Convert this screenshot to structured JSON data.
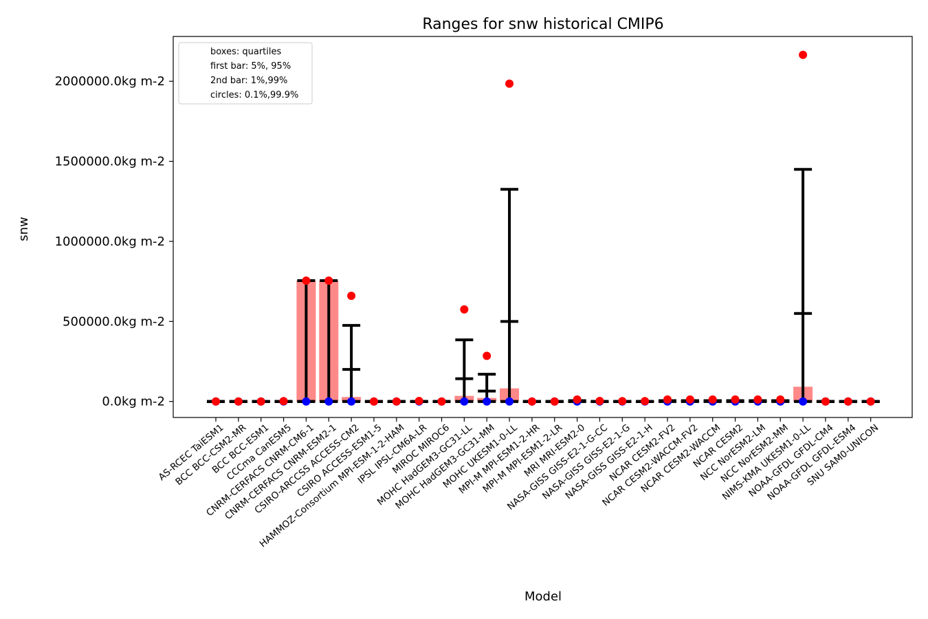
{
  "chart_data": {
    "type": "box-range",
    "title": "Ranges for snw historical CMIP6",
    "xlabel": "Model",
    "ylabel": "snw",
    "ylim": [
      -100000,
      2280000
    ],
    "yticks": [
      0,
      500000,
      1000000,
      1500000,
      2000000
    ],
    "ytick_labels": [
      "0.0kg m-2",
      "500000.0kg m-2",
      "1000000.0kg m-2",
      "1500000.0kg m-2",
      "2000000.0kg m-2"
    ],
    "legend": {
      "placement": "top-left",
      "entries": [
        "boxes: quartiles",
        "first bar: 5%, 95%",
        "2nd bar: 1%,99%",
        "circles: 0.1%,99.9%"
      ]
    },
    "colors": {
      "box": "#ff8888",
      "bar": "#000000",
      "circle_high": "#ff0000",
      "circle_low": "#0000ff"
    },
    "categories": [
      "AS-RCEC TaiESM1",
      "BCC BCC-CSM2-MR",
      "BCC BCC-ESM1",
      "CCCma CanESM5",
      "CNRM-CERFACS CNRM-CM6-1",
      "CNRM-CERFACS CNRM-ESM2-1",
      "CSIRO-ARCCSS ACCESS-CM2",
      "CSIRO ACCESS-ESM1-5",
      "HAMMOZ-Consortium MPI-ESM-1-2-HAM",
      "IPSL IPSL-CM6A-LR",
      "MIROC MIROC6",
      "MOHC HadGEM3-GC31-LL",
      "MOHC HadGEM3-GC31-MM",
      "MOHC UKESM1-0-LL",
      "MPI-M MPI-ESM1-2-HR",
      "MPI-M MPI-ESM1-2-LR",
      "MRI MRI-ESM2-0",
      "NASA-GISS GISS-E2-1-G-CC",
      "NASA-GISS GISS-E2-1-G",
      "NASA-GISS GISS-E2-1-H",
      "NCAR CESM2-FV2",
      "NCAR CESM2-WACCM-FV2",
      "NCAR CESM2-WACCM",
      "NCAR CESM2",
      "NCC NorESM2-LM",
      "NCC NorESM2-MM",
      "NIMS-KMA UKESM1-0-LL",
      "NOAA-GFDL GFDL-CM4",
      "NOAA-GFDL GFDL-ESM4",
      "SNU SAM0-UNICON"
    ],
    "series": [
      {
        "name": "quartile_low",
        "values": [
          0,
          0,
          0,
          0,
          0,
          0,
          0,
          0,
          0,
          0,
          0,
          0,
          0,
          0,
          0,
          0,
          0,
          0,
          0,
          0,
          0,
          0,
          0,
          0,
          0,
          0,
          0,
          0,
          0,
          0
        ]
      },
      {
        "name": "quartile_high",
        "values": [
          0,
          0,
          0,
          0,
          755000,
          755000,
          28000,
          0,
          0,
          0,
          0,
          35000,
          22000,
          82000,
          0,
          0,
          0,
          0,
          0,
          0,
          0,
          0,
          0,
          0,
          0,
          0,
          92000,
          0,
          0,
          0
        ]
      },
      {
        "name": "p5",
        "values": [
          0,
          0,
          0,
          0,
          0,
          0,
          0,
          0,
          0,
          0,
          0,
          0,
          0,
          0,
          0,
          0,
          0,
          0,
          0,
          0,
          0,
          0,
          0,
          0,
          0,
          0,
          0,
          0,
          0,
          0
        ]
      },
      {
        "name": "p95",
        "values": [
          0,
          0,
          0,
          0,
          0,
          0,
          200000,
          0,
          0,
          0,
          0,
          142000,
          65000,
          500000,
          0,
          0,
          0,
          0,
          0,
          0,
          5000,
          5000,
          5000,
          5000,
          5000,
          5000,
          550000,
          0,
          0,
          0
        ]
      },
      {
        "name": "p1",
        "values": [
          0,
          0,
          0,
          0,
          0,
          0,
          0,
          0,
          0,
          0,
          0,
          0,
          0,
          0,
          0,
          0,
          0,
          0,
          0,
          0,
          0,
          0,
          0,
          0,
          0,
          0,
          0,
          0,
          0,
          0
        ]
      },
      {
        "name": "p99",
        "values": [
          0,
          0,
          0,
          0,
          755000,
          755000,
          475000,
          0,
          0,
          0,
          0,
          385000,
          170000,
          1325000,
          0,
          0,
          5000,
          0,
          0,
          0,
          5000,
          5000,
          5000,
          5000,
          5000,
          5000,
          1450000,
          0,
          0,
          0
        ]
      },
      {
        "name": "p0_1",
        "values": [
          0,
          0,
          0,
          0,
          0,
          0,
          0,
          0,
          0,
          0,
          0,
          0,
          0,
          0,
          0,
          0,
          0,
          0,
          0,
          0,
          0,
          0,
          0,
          0,
          0,
          0,
          0,
          0,
          0,
          0
        ]
      },
      {
        "name": "p99_9",
        "values": [
          0,
          0,
          0,
          2000,
          755000,
          755000,
          660000,
          0,
          0,
          3000,
          0,
          575000,
          285000,
          1985000,
          0,
          0,
          12000,
          3000,
          2000,
          2000,
          12000,
          12000,
          12000,
          12000,
          12000,
          12000,
          2165000,
          0,
          0,
          0
        ]
      }
    ]
  }
}
